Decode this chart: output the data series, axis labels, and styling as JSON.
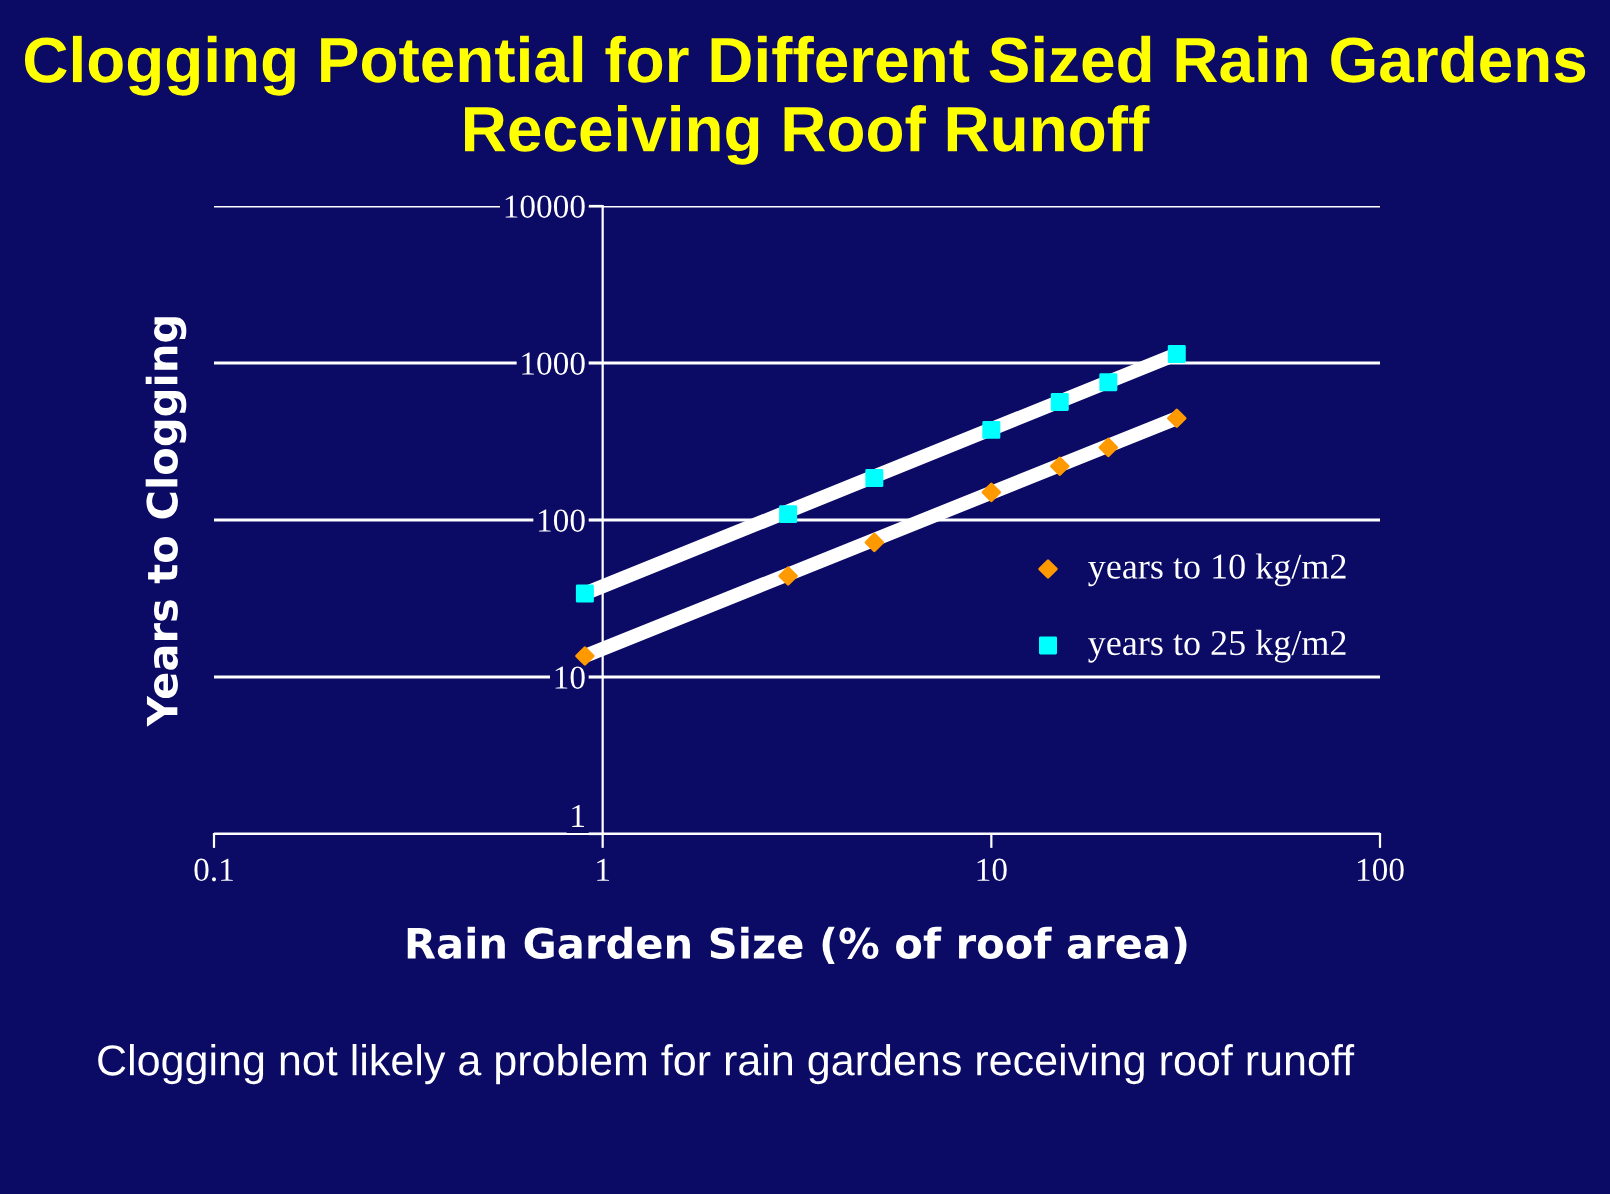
{
  "chart_data": {
    "type": "scatter",
    "title": "Clogging Potential for Different Sized Rain Gardens Receiving Roof Runoff",
    "xlabel": "Rain Garden Size (% of roof area)",
    "ylabel": "Years to Clogging",
    "log": "xy",
    "xlim": [
      0.1,
      100
    ],
    "ylim": [
      1,
      10000
    ],
    "xticks": [
      0.1,
      1,
      10,
      100
    ],
    "yticks": [
      1,
      10,
      100,
      1000,
      10000
    ],
    "grid": "y",
    "legend": "right",
    "annotations": [
      "Clogging not likely a problem for rain gardens receiving roof runoff"
    ],
    "series": [
      {
        "type": "line",
        "color": "#ffffff",
        "x": [
          0.9,
          30
        ],
        "values": [
          13.6,
          445
        ],
        "marker": "none"
      },
      {
        "type": "line",
        "color": "#ffffff",
        "x": [
          0.9,
          30
        ],
        "values": [
          34,
          1140
        ],
        "marker": "none"
      },
      {
        "name": "years to 10 kg/m2",
        "color": "#ff9900",
        "marker": "diamond",
        "x": [
          0.9,
          3,
          5,
          10,
          15,
          20,
          30
        ],
        "values": [
          13.6,
          44,
          72,
          150,
          220,
          290,
          445
        ]
      },
      {
        "name": "years to 25 kg/m2",
        "color": "#00ffff",
        "marker": "square",
        "x": [
          0.9,
          3,
          5,
          10,
          15,
          20,
          30
        ],
        "values": [
          34,
          109,
          185,
          375,
          565,
          755,
          1140
        ]
      }
    ]
  }
}
